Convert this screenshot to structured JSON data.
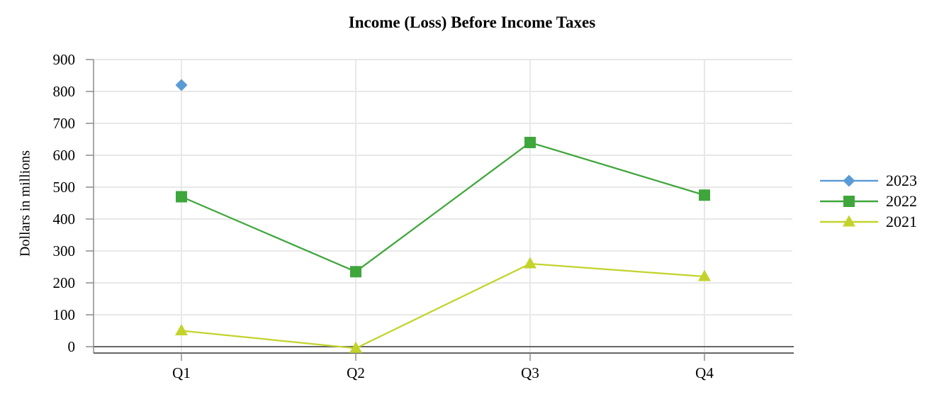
{
  "chart_data": {
    "type": "line",
    "title": "Income (Loss) Before Income Taxes",
    "xlabel": "",
    "ylabel": "Dollars in millions",
    "categories": [
      "Q1",
      "Q2",
      "Q3",
      "Q4"
    ],
    "series": [
      {
        "name": "2023",
        "marker": "diamond",
        "color": "#5B9BD5",
        "values": [
          820,
          null,
          null,
          null
        ]
      },
      {
        "name": "2022",
        "marker": "square",
        "color": "#3FA63C",
        "values": [
          470,
          235,
          640,
          475
        ]
      },
      {
        "name": "2021",
        "marker": "triangle",
        "color": "#C3D32B",
        "values": [
          50,
          -5,
          260,
          220
        ]
      }
    ],
    "yticks": [
      0,
      100,
      200,
      300,
      400,
      500,
      600,
      700,
      800,
      900
    ],
    "ylim": [
      -20,
      900
    ],
    "grid": true,
    "legend_position": "right"
  },
  "colors": {
    "gridline": "#E8E8E8",
    "axis": "#8C8C8C",
    "zero_line": "#666666",
    "text": "#000000",
    "background": "#FFFFFF"
  }
}
